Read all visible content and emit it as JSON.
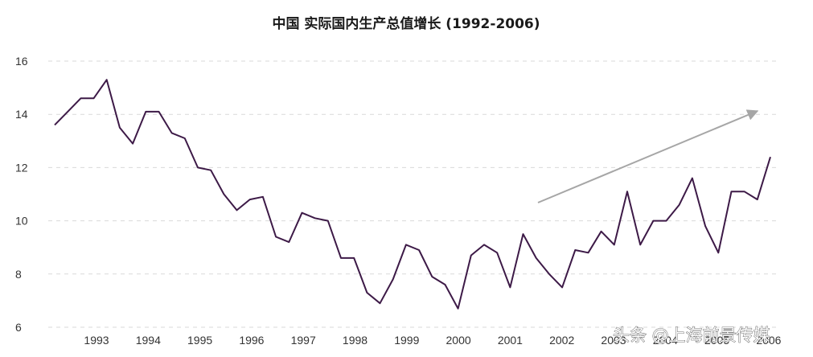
{
  "chart_data": {
    "type": "line",
    "title": "中国 实际国内生产总值增长   (1992-2006)",
    "xlabel": "",
    "ylabel": "",
    "ylim": [
      6,
      16
    ],
    "yticks": [
      "6",
      "8",
      "10",
      "12",
      "14",
      "16"
    ],
    "xticks": [
      "1993",
      "1994",
      "1995",
      "1996",
      "1997",
      "1998",
      "1999",
      "2000",
      "2001",
      "2002",
      "2003",
      "2004",
      "2005",
      "2006"
    ],
    "grid": "horizontal dashed",
    "series": [
      {
        "color": "#3d1a47",
        "values": [
          13.6,
          14.1,
          14.6,
          14.6,
          15.3,
          13.5,
          12.9,
          14.1,
          14.1,
          13.3,
          13.1,
          12.0,
          11.9,
          11.0,
          10.4,
          10.8,
          10.9,
          9.4,
          9.2,
          10.3,
          10.1,
          10.0,
          8.6,
          8.6,
          7.3,
          6.9,
          7.8,
          9.1,
          8.9,
          7.9,
          7.6,
          6.7,
          8.7,
          9.1,
          8.8,
          7.5,
          9.5,
          8.6,
          8.0,
          7.5,
          8.9,
          8.8,
          9.6,
          9.1,
          11.1,
          9.1,
          10.0,
          10.0,
          10.6,
          11.6,
          9.8,
          8.8,
          11.1,
          11.1,
          10.8,
          12.4
        ]
      }
    ],
    "annotation": "upward trend arrow (gray)"
  },
  "colors": {
    "line": "#3d1a47",
    "arrow": "#a6a6a6",
    "grid": "#d9d9d9"
  },
  "watermark": "头条 @上海前景传媒"
}
